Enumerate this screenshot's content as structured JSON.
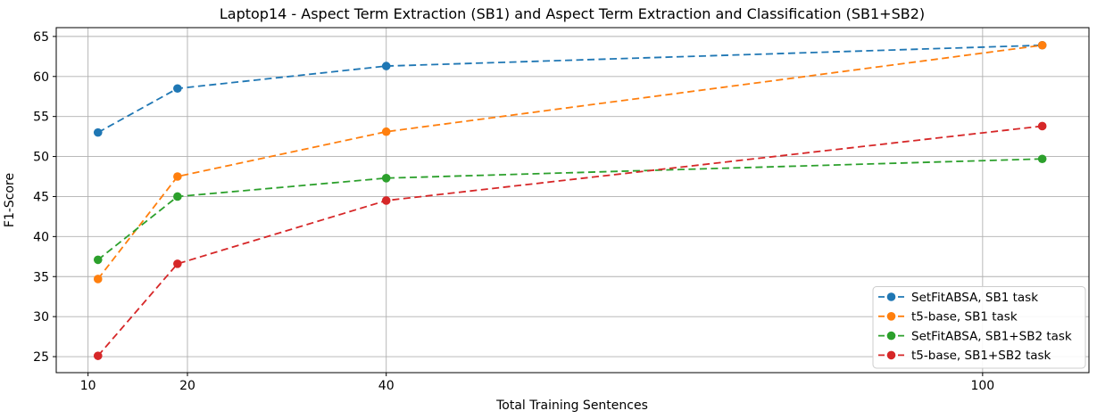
{
  "figure": {
    "background_color": "#ffffff",
    "grid_color": "#b0b0b0",
    "frame_color": "#000000",
    "legend_border_color": "#cccccc"
  },
  "chart_data": {
    "type": "line",
    "title": "Laptop14 - Aspect Term Extraction (SB1) and Aspect Term Extraction and Classification (SB1+SB2)",
    "xlabel": "Total Training Sentences",
    "ylabel": "F1-Score",
    "x": [
      11,
      19,
      40,
      106
    ],
    "series": [
      {
        "name": "SetFitABSA, SB1 task",
        "color": "#1f77b4",
        "values": [
          53.0,
          58.5,
          61.3,
          63.9
        ]
      },
      {
        "name": "t5-base, SB1 task",
        "color": "#ff7f0e",
        "values": [
          34.7,
          47.5,
          53.1,
          63.9
        ]
      },
      {
        "name": "SetFitABSA, SB1+SB2 task",
        "color": "#2ca02c",
        "values": [
          37.1,
          45.0,
          47.3,
          49.7
        ]
      },
      {
        "name": "t5-base, SB1+SB2 task",
        "color": "#d62728",
        "values": [
          25.1,
          36.6,
          44.5,
          53.8
        ]
      }
    ],
    "x_ticks": [
      10,
      20,
      40,
      100
    ],
    "y_ticks": [
      25,
      30,
      35,
      40,
      45,
      50,
      55,
      60,
      65
    ],
    "xlim": [
      6.8,
      110.7
    ],
    "ylim": [
      23.0,
      66.1
    ],
    "x_scale": "linear",
    "grid": true,
    "line_style": "dashed",
    "marker": "circle",
    "legend_position": "lower right"
  }
}
